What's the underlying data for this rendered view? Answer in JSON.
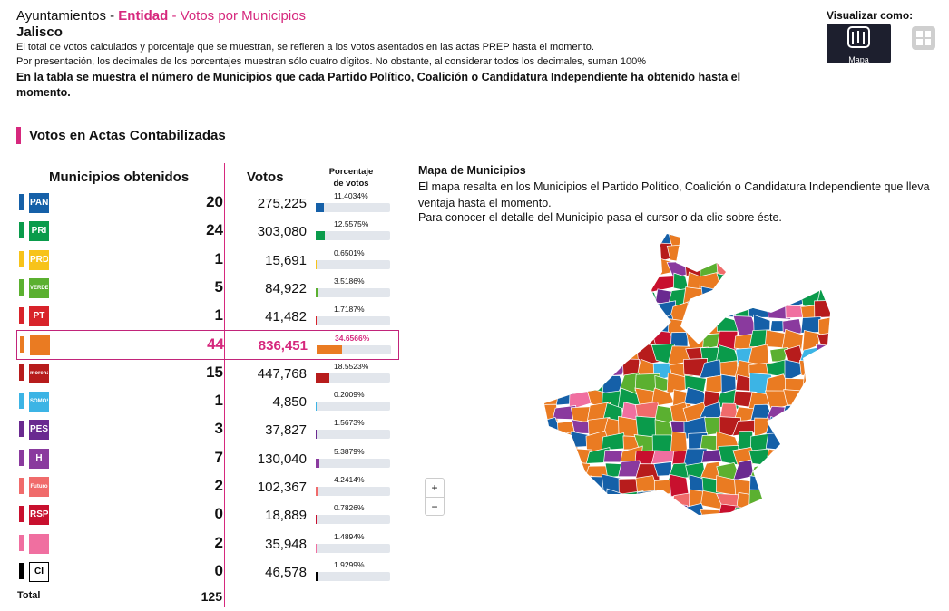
{
  "header": {
    "breadcrumb": [
      "Ayuntamientos",
      "Entidad",
      "Votos por Municipios"
    ],
    "separator": "-",
    "state": "Jalisco",
    "notes": [
      "El total de votos calculados y porcentaje que se muestran, se refieren a los votos asentados en las actas PREP hasta el momento.",
      "Por presentación, los decimales de los porcentajes muestran sólo cuatro dígitos. No obstante, al considerar todos los decimales, suman 100%"
    ],
    "emphasis": "En la tabla se muestra el número de Municipios que cada Partido Político, Coalición o Candidatura Independiente ha obtenido hasta el momento."
  },
  "view": {
    "label": "Visualizar como:",
    "map_button": "Mapa"
  },
  "section_title": "Votos en Actas Contabilizadas",
  "table": {
    "columns": [
      "Municipios obtenidos",
      "Votos",
      "Porcentaje de votos"
    ],
    "rows": [
      {
        "logo": "PAN",
        "color": "#1560a8",
        "municipios": 20,
        "votos": "275,225",
        "percent": {
          "value": 11.4034,
          "label": "11.4034%"
        }
      },
      {
        "logo": "PRI",
        "color": "#0a9b4b",
        "municipios": 24,
        "votos": "303,080",
        "percent": {
          "value": 12.5575,
          "label": "12.5575%"
        }
      },
      {
        "logo": "PRD",
        "color": "#f7c31a",
        "municipios": 1,
        "votos": "15,691",
        "percent": {
          "value": 0.6501,
          "label": "0.6501%"
        }
      },
      {
        "logo": "VERDE",
        "color": "#5bb030",
        "municipios": 5,
        "votos": "84,922",
        "percent": {
          "value": 3.5186,
          "label": "3.5186%"
        }
      },
      {
        "logo": "PT",
        "color": "#d8232a",
        "municipios": 1,
        "votos": "41,482",
        "percent": {
          "value": 1.7187,
          "label": "1.7187%"
        }
      },
      {
        "color": "#ea7b22",
        "municipios": 44,
        "votos": "836,451",
        "percent": {
          "value": 34.6566,
          "label": "34.6566%"
        },
        "highlight": true
      },
      {
        "logo": "morena",
        "color": "#b71c1c",
        "municipios": 15,
        "votos": "447,768",
        "percent": {
          "value": 18.5523,
          "label": "18.5523%"
        }
      },
      {
        "logo": "SOMOS",
        "color": "#3cb4e5",
        "municipios": 1,
        "votos": "4,850",
        "percent": {
          "value": 0.2009,
          "label": "0.2009%"
        }
      },
      {
        "logo": "PES",
        "color": "#6a2a90",
        "municipios": 3,
        "votos": "37,827",
        "percent": {
          "value": 1.5673,
          "label": "1.5673%"
        }
      },
      {
        "logo": "H",
        "color": "#8a3a9e",
        "municipios": 7,
        "votos": "130,040",
        "percent": {
          "value": 5.3879,
          "label": "5.3879%"
        }
      },
      {
        "logo": "Futuro",
        "color": "#f06b6b",
        "municipios": 2,
        "votos": "102,367",
        "percent": {
          "value": 4.2414,
          "label": "4.2414%"
        }
      },
      {
        "logo": "RSP",
        "color": "#c8102e",
        "municipios": 0,
        "votos": "18,889",
        "percent": {
          "value": 0.7826,
          "label": "0.7826%"
        }
      },
      {
        "color": "#f06fa0",
        "municipios": 2,
        "votos": "35,948",
        "percent": {
          "value": 1.4894,
          "label": "1.4894%"
        }
      },
      {
        "logo": "CI",
        "color": "#000000",
        "municipios": 0,
        "votos": "46,578",
        "percent": {
          "value": 1.9299,
          "label": "1.9299%"
        }
      }
    ],
    "total_label": "Total",
    "total": 125
  },
  "map": {
    "title": "Mapa de Municipios",
    "description": "El mapa resalta en los Municipios el Partido Político, Coalición o Candidatura Independiente que lleva ventaja hasta el momento.",
    "instruction": "Para conocer el detalle del Municipio pasa el cursor o da clic sobre éste.",
    "zoom_in": "+",
    "zoom_out": "−"
  }
}
